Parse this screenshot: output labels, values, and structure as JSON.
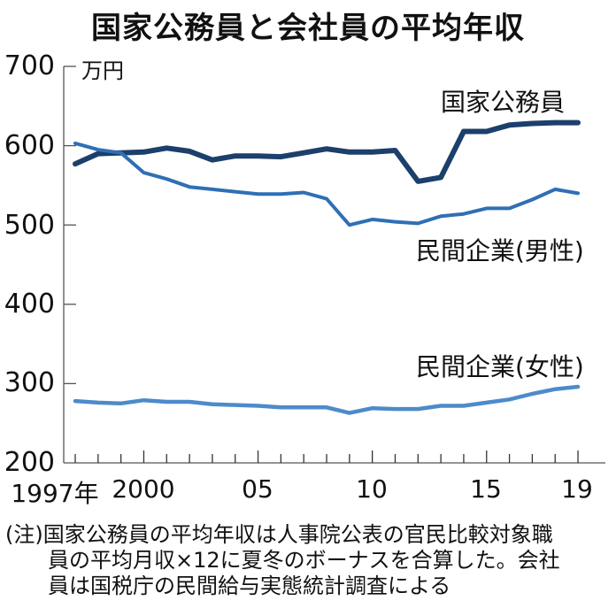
{
  "title": "国家公務員と会社員の平均年収",
  "unit": "万円",
  "note": {
    "lines": [
      "(注)国家公務員の平均年収は人事院公表の官民比較対象職",
      "員の平均月収×12に夏冬のボーナスを合算した。会社",
      "員は国税庁の民間給与実態統計調査による"
    ]
  },
  "y_ticks": [
    "700",
    "600",
    "500",
    "400",
    "300",
    "200"
  ],
  "x_ticks": [
    "1997年",
    "2000",
    "05",
    "10",
    "15",
    "19"
  ],
  "series_labels": {
    "civil": "国家公務員",
    "male": "民間企業(男性)",
    "female": "民間企業(女性)"
  },
  "colors": {
    "civil": "#1c3f6b",
    "male": "#2f6fb5",
    "female": "#4d8bca",
    "axis": "#555555"
  },
  "chart_data": {
    "type": "line",
    "title": "国家公務員と会社員の平均年収",
    "xlabel": "",
    "ylabel": "万円",
    "ylim": [
      200,
      700
    ],
    "x": [
      1997,
      1998,
      1999,
      2000,
      2001,
      2002,
      2003,
      2004,
      2005,
      2006,
      2007,
      2008,
      2009,
      2010,
      2011,
      2012,
      2013,
      2014,
      2015,
      2016,
      2017,
      2018,
      2019
    ],
    "x_tick_labels": [
      "1997年",
      "2000",
      "05",
      "10",
      "15",
      "19"
    ],
    "y_tick_labels": [
      "200",
      "300",
      "400",
      "500",
      "600",
      "700"
    ],
    "grid": false,
    "legend_position": "inline labels near lines",
    "series": [
      {
        "name": "国家公務員",
        "values": [
          577,
          590,
          591,
          592,
          597,
          593,
          582,
          587,
          587,
          586,
          591,
          596,
          592,
          592,
          594,
          555,
          560,
          618,
          618,
          626,
          628,
          629,
          629
        ]
      },
      {
        "name": "民間企業(男性)",
        "values": [
          603,
          595,
          591,
          566,
          558,
          548,
          545,
          542,
          539,
          539,
          541,
          533,
          500,
          507,
          504,
          502,
          511,
          514,
          521,
          521,
          532,
          545,
          540
        ]
      },
      {
        "name": "民間企業(女性)",
        "values": [
          278,
          276,
          275,
          279,
          277,
          277,
          274,
          273,
          272,
          270,
          270,
          270,
          263,
          269,
          268,
          268,
          272,
          272,
          276,
          280,
          287,
          293,
          296
        ]
      }
    ],
    "annotations": [
      "(注)国家公務員の平均年収は人事院公表の官民比較対象職員の平均月収×12に夏冬のボーナスを合算した。会社員は国税庁の民間給与実態統計調査による"
    ]
  }
}
